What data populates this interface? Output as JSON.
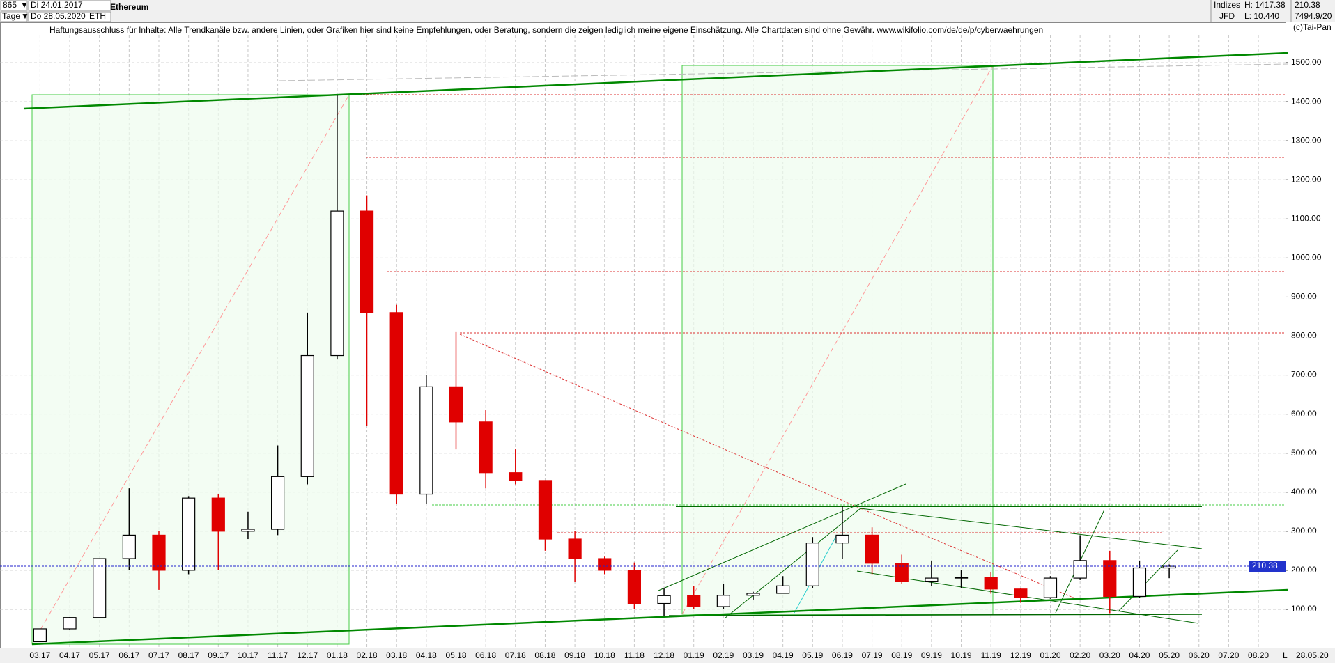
{
  "header": {
    "count": "865",
    "start": "Di 24.01.2017",
    "period": "Tage",
    "end": "Do 28.05.2020",
    "symbol": "ETH",
    "group": "Indizes",
    "broker": "JFD",
    "high": "H: 1417.38",
    "low": "L: 10.440",
    "last": "210.38",
    "extra": "7494.9/20",
    "copyright": "(c)Tai-Pan",
    "disclaimer": "Haftungsausschluss für Inhalte: Alle Trendkanäle bzw. andere Linien, oder Grafiken hier sind keine Empfehlungen, oder Beratung, sondern die zeigen lediglich meine eigene Einschätzung. Alle Chartdaten sind ohne Gewähr.  www.wikifolio.com/de/de/p/cyberwaehrungen",
    "scale_mode": "L",
    "date": "28.05.20"
  },
  "chart_data": {
    "type": "candlestick",
    "title": "Ethereum",
    "categories": [
      "03.17",
      "04.17",
      "05.17",
      "06.17",
      "07.17",
      "08.17",
      "09.17",
      "10.17",
      "11.17",
      "12.17",
      "01.18",
      "02.18",
      "03.18",
      "04.18",
      "05.18",
      "06.18",
      "07.18",
      "08.18",
      "09.18",
      "10.18",
      "11.18",
      "12.18",
      "01.19",
      "02.19",
      "03.19",
      "04.19",
      "05.19",
      "06.19",
      "07.19",
      "08.19",
      "09.19",
      "10.19",
      "11.19",
      "12.19",
      "01.20",
      "02.20",
      "03.20",
      "04.20",
      "05.20",
      "06.20",
      "07.20",
      "08.20"
    ],
    "open": [
      17,
      50,
      79,
      230,
      290,
      200,
      385,
      300,
      305,
      440,
      750,
      1120,
      860,
      395,
      670,
      580,
      450,
      430,
      280,
      230,
      200,
      115,
      135,
      107,
      136,
      141,
      160,
      270,
      290,
      218,
      172,
      180,
      182,
      152,
      130,
      180,
      225,
      133,
      206,
      null,
      null,
      null
    ],
    "high": [
      50,
      80,
      230,
      410,
      300,
      390,
      395,
      350,
      520,
      860,
      1417.38,
      1160,
      880,
      700,
      810,
      610,
      510,
      430,
      300,
      235,
      220,
      155,
      160,
      165,
      145,
      185,
      285,
      365,
      310,
      240,
      225,
      200,
      195,
      155,
      185,
      290,
      250,
      225,
      215,
      null,
      null,
      null
    ],
    "low": [
      16,
      47,
      78,
      200,
      150,
      190,
      200,
      280,
      290,
      420,
      740,
      570,
      370,
      370,
      510,
      410,
      420,
      250,
      170,
      190,
      100,
      82,
      100,
      100,
      125,
      140,
      155,
      230,
      190,
      165,
      160,
      155,
      140,
      117,
      127,
      175,
      90,
      130,
      180,
      null,
      null,
      null
    ],
    "close": [
      50,
      79,
      230,
      290,
      200,
      385,
      300,
      305,
      440,
      750,
      1120,
      860,
      395,
      670,
      580,
      450,
      430,
      280,
      230,
      200,
      115,
      135,
      107,
      136,
      141,
      160,
      270,
      290,
      218,
      172,
      180,
      182,
      152,
      130,
      180,
      225,
      133,
      206,
      210.38,
      null,
      null,
      null
    ],
    "up_color": "#000000",
    "down_color": "#e00000",
    "ylim": [
      0,
      1600
    ],
    "yticks": [
      {
        "value": 100,
        "label": "100.00"
      },
      {
        "value": 200,
        "label": "200.00"
      },
      {
        "value": 300,
        "label": "300.00"
      },
      {
        "value": 400,
        "label": "400.00"
      },
      {
        "value": 500,
        "label": "500.00"
      },
      {
        "value": 600,
        "label": "600.00"
      },
      {
        "value": 700,
        "label": "700.00"
      },
      {
        "value": 800,
        "label": "800.00"
      },
      {
        "value": 900,
        "label": "900.00"
      },
      {
        "value": 1000,
        "label": "1000.00"
      },
      {
        "value": 1100,
        "label": "1100.00"
      },
      {
        "value": 1200,
        "label": "1200.00"
      },
      {
        "value": 1300,
        "label": "1300.00"
      },
      {
        "value": 1400,
        "label": "1400.00"
      },
      {
        "value": 1500,
        "label": "1500.00"
      }
    ],
    "grid": true
  }
}
